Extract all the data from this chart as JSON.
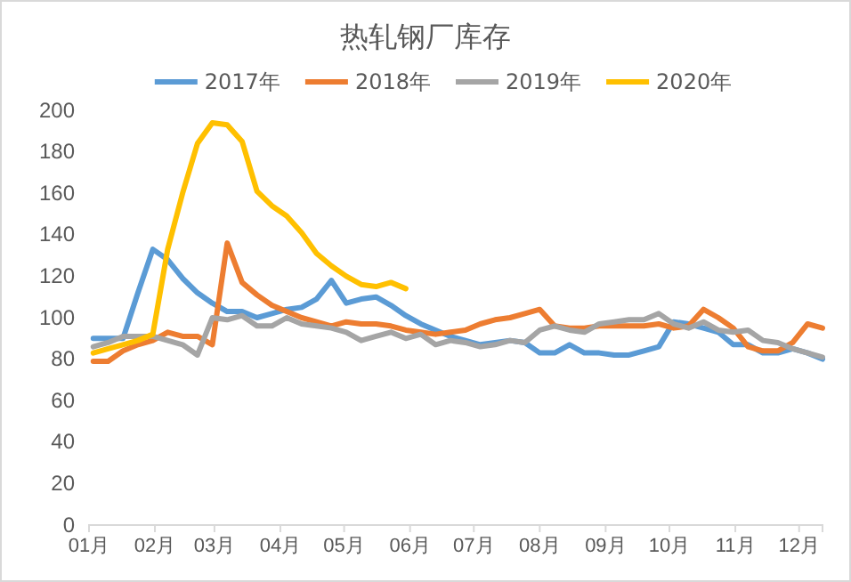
{
  "chart_data": {
    "type": "line",
    "title": "热轧钢厂库存",
    "legend": "top",
    "grid": false,
    "marker": "none",
    "line_style": "solid",
    "x": [
      "--01-03",
      "--01-10",
      "--01-17",
      "--01-24",
      "--01-31",
      "--02-07",
      "--02-14",
      "--02-21",
      "--02-28",
      "--03-07",
      "--03-14",
      "--03-21",
      "--03-28",
      "--04-04",
      "--04-11",
      "--04-18",
      "--04-25",
      "--05-02",
      "--05-09",
      "--05-16",
      "--05-23",
      "--05-30",
      "--06-06",
      "--06-13",
      "--06-20",
      "--06-27",
      "--07-04",
      "--07-11",
      "--07-18",
      "--07-25",
      "--08-01",
      "--08-08",
      "--08-15",
      "--08-22",
      "--08-29",
      "--09-05",
      "--09-12",
      "--09-19",
      "--09-26",
      "--10-03",
      "--10-10",
      "--10-17",
      "--10-24",
      "--10-31",
      "--11-07",
      "--11-14",
      "--11-21",
      "--11-28",
      "--12-05",
      "--12-12"
    ],
    "series": [
      {
        "name": "2017年",
        "color": "#5b9bd5",
        "values": [
          90,
          90,
          90,
          112,
          133,
          128,
          119,
          112,
          107,
          103,
          103,
          100,
          102,
          104,
          105,
          109,
          118,
          107,
          109,
          110,
          106,
          101,
          97,
          94,
          91,
          89,
          87,
          88,
          89,
          88,
          83,
          83,
          87,
          83,
          83,
          82,
          82,
          84,
          86,
          98,
          97,
          95,
          93,
          87,
          87,
          83,
          83,
          85,
          83,
          80
        ]
      },
      {
        "name": "2018年",
        "color": "#ed7d31",
        "values": [
          79,
          79,
          84,
          87,
          89,
          93,
          91,
          91,
          87,
          136,
          117,
          111,
          106,
          103,
          100,
          98,
          96,
          98,
          97,
          97,
          96,
          94,
          93,
          92,
          93,
          94,
          97,
          99,
          100,
          102,
          104,
          96,
          95,
          95,
          96,
          96,
          96,
          96,
          97,
          95,
          96,
          104,
          100,
          95,
          86,
          84,
          84,
          88,
          97,
          95
        ]
      },
      {
        "name": "2019年",
        "color": "#a5a5a5",
        "values": [
          86,
          88,
          91,
          91,
          91,
          89,
          87,
          82,
          100,
          99,
          101,
          96,
          96,
          100,
          97,
          96,
          95,
          93,
          89,
          91,
          93,
          90,
          92,
          87,
          89,
          88,
          86,
          87,
          89,
          88,
          94,
          96,
          94,
          93,
          97,
          98,
          99,
          99,
          102,
          97,
          95,
          98,
          94,
          93,
          94,
          89,
          88,
          85,
          83,
          81
        ]
      },
      {
        "name": "2020年",
        "color": "#ffc000",
        "values": [
          83,
          85,
          87,
          89,
          92,
          133,
          160,
          184,
          194,
          193,
          185,
          161,
          154,
          149,
          141,
          131,
          125,
          120,
          116,
          115,
          117,
          114,
          null,
          null,
          null,
          null,
          null,
          null,
          null,
          null,
          null,
          null,
          null,
          null,
          null,
          null,
          null,
          null,
          null,
          null,
          null,
          null,
          null,
          null,
          null,
          null,
          null,
          null,
          null,
          null
        ]
      }
    ],
    "xlim": [
      "--01-01",
      "--12-12"
    ],
    "xticks": [
      {
        "value": "--01-01",
        "label": "01月"
      },
      {
        "value": "--02-01",
        "label": "02月"
      },
      {
        "value": "--03-01",
        "label": "03月"
      },
      {
        "value": "--04-01",
        "label": "04月"
      },
      {
        "value": "--05-01",
        "label": "05月"
      },
      {
        "value": "--06-01",
        "label": "06月"
      },
      {
        "value": "--07-01",
        "label": "07月"
      },
      {
        "value": "--08-01",
        "label": "08月"
      },
      {
        "value": "--09-01",
        "label": "09月"
      },
      {
        "value": "--10-01",
        "label": "10月"
      },
      {
        "value": "--11-01",
        "label": "11月"
      },
      {
        "value": "--12-01",
        "label": "12月"
      }
    ],
    "ylim": [
      0,
      200
    ],
    "yticks": [
      0,
      20,
      40,
      60,
      80,
      100,
      120,
      140,
      160,
      180,
      200
    ]
  }
}
